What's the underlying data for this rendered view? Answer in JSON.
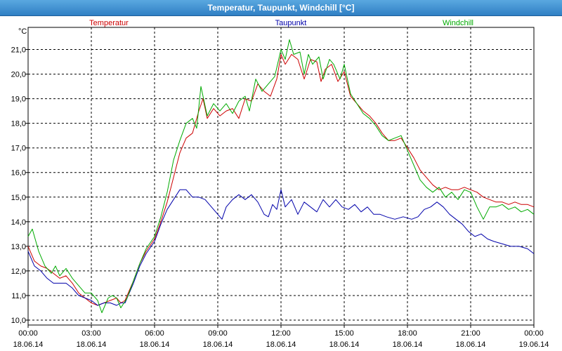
{
  "window": {
    "title": "Temperatur, Taupunkt, Windchill [°C]"
  },
  "chart_data": {
    "type": "line",
    "title": "Temperatur, Taupunkt, Windchill [°C]",
    "ylabel": "°C",
    "ylim": [
      9.8,
      21.9
    ],
    "xlim": [
      0,
      24
    ],
    "grid": true,
    "legend_position": "top",
    "yticks": [
      "10,0",
      "11,0",
      "12,0",
      "13,0",
      "14,0",
      "15,0",
      "16,0",
      "17,0",
      "18,0",
      "19,0",
      "20,0",
      "21,0"
    ],
    "xticks": [
      {
        "time": "00:00",
        "date": "18.06.14"
      },
      {
        "time": "03:00",
        "date": "18.06.14"
      },
      {
        "time": "06:00",
        "date": "18.06.14"
      },
      {
        "time": "09:00",
        "date": "18.06.14"
      },
      {
        "time": "12:00",
        "date": "18.06.14"
      },
      {
        "time": "15:00",
        "date": "18.06.14"
      },
      {
        "time": "18:00",
        "date": "18.06.14"
      },
      {
        "time": "21:00",
        "date": "18.06.14"
      },
      {
        "time": "00:00",
        "date": "19.06.14"
      }
    ],
    "series": [
      {
        "name": "Temperatur",
        "color": "#cc0000",
        "points": [
          [
            0.0,
            13.0
          ],
          [
            0.3,
            12.4
          ],
          [
            0.6,
            12.2
          ],
          [
            0.9,
            12.1
          ],
          [
            1.2,
            11.9
          ],
          [
            1.5,
            11.7
          ],
          [
            1.8,
            11.8
          ],
          [
            2.1,
            11.5
          ],
          [
            2.4,
            11.1
          ],
          [
            2.7,
            10.9
          ],
          [
            3.0,
            10.7
          ],
          [
            3.3,
            10.6
          ],
          [
            3.6,
            10.7
          ],
          [
            3.9,
            10.8
          ],
          [
            4.2,
            10.9
          ],
          [
            4.4,
            10.7
          ],
          [
            4.6,
            10.8
          ],
          [
            5.0,
            11.6
          ],
          [
            5.3,
            12.3
          ],
          [
            5.6,
            12.8
          ],
          [
            6.0,
            13.3
          ],
          [
            6.3,
            14.0
          ],
          [
            6.6,
            14.8
          ],
          [
            6.9,
            15.8
          ],
          [
            7.2,
            16.8
          ],
          [
            7.5,
            17.4
          ],
          [
            7.8,
            17.6
          ],
          [
            8.1,
            18.5
          ],
          [
            8.3,
            19.0
          ],
          [
            8.5,
            18.2
          ],
          [
            8.8,
            18.6
          ],
          [
            9.1,
            18.3
          ],
          [
            9.4,
            18.5
          ],
          [
            9.7,
            18.6
          ],
          [
            10.0,
            18.2
          ],
          [
            10.3,
            19.0
          ],
          [
            10.6,
            18.9
          ],
          [
            10.9,
            19.6
          ],
          [
            11.2,
            19.3
          ],
          [
            11.5,
            19.1
          ],
          [
            11.8,
            19.8
          ],
          [
            12.0,
            20.8
          ],
          [
            12.2,
            20.4
          ],
          [
            12.5,
            20.8
          ],
          [
            12.8,
            20.6
          ],
          [
            13.1,
            19.8
          ],
          [
            13.4,
            20.6
          ],
          [
            13.7,
            20.5
          ],
          [
            13.9,
            19.7
          ],
          [
            14.1,
            20.2
          ],
          [
            14.4,
            20.4
          ],
          [
            14.7,
            19.7
          ],
          [
            15.0,
            20.1
          ],
          [
            15.3,
            19.1
          ],
          [
            15.6,
            18.8
          ],
          [
            15.9,
            18.5
          ],
          [
            16.2,
            18.3
          ],
          [
            16.5,
            18.0
          ],
          [
            16.8,
            17.6
          ],
          [
            17.1,
            17.3
          ],
          [
            17.4,
            17.3
          ],
          [
            17.7,
            17.4
          ],
          [
            18.0,
            17.0
          ],
          [
            18.3,
            16.6
          ],
          [
            18.6,
            16.1
          ],
          [
            18.9,
            15.8
          ],
          [
            19.2,
            15.5
          ],
          [
            19.5,
            15.3
          ],
          [
            19.8,
            15.4
          ],
          [
            20.1,
            15.3
          ],
          [
            20.4,
            15.3
          ],
          [
            20.7,
            15.4
          ],
          [
            21.0,
            15.3
          ],
          [
            21.3,
            15.2
          ],
          [
            21.6,
            15.0
          ],
          [
            21.9,
            14.9
          ],
          [
            22.2,
            14.8
          ],
          [
            22.5,
            14.8
          ],
          [
            22.8,
            14.7
          ],
          [
            23.1,
            14.8
          ],
          [
            23.4,
            14.7
          ],
          [
            23.7,
            14.7
          ],
          [
            24.0,
            14.6
          ]
        ]
      },
      {
        "name": "Taupunkt",
        "color": "#0000aa",
        "points": [
          [
            0.0,
            12.8
          ],
          [
            0.3,
            12.2
          ],
          [
            0.6,
            12.0
          ],
          [
            0.9,
            11.7
          ],
          [
            1.2,
            11.5
          ],
          [
            1.5,
            11.5
          ],
          [
            1.8,
            11.5
          ],
          [
            2.1,
            11.3
          ],
          [
            2.4,
            11.0
          ],
          [
            2.7,
            10.9
          ],
          [
            3.0,
            10.8
          ],
          [
            3.3,
            10.6
          ],
          [
            3.6,
            10.7
          ],
          [
            3.9,
            10.7
          ],
          [
            4.2,
            10.6
          ],
          [
            4.4,
            10.7
          ],
          [
            4.6,
            10.7
          ],
          [
            5.0,
            11.5
          ],
          [
            5.3,
            12.2
          ],
          [
            5.6,
            12.7
          ],
          [
            6.0,
            13.2
          ],
          [
            6.3,
            13.9
          ],
          [
            6.6,
            14.5
          ],
          [
            6.9,
            14.9
          ],
          [
            7.2,
            15.3
          ],
          [
            7.5,
            15.3
          ],
          [
            7.8,
            15.0
          ],
          [
            8.1,
            15.0
          ],
          [
            8.4,
            14.9
          ],
          [
            8.7,
            14.6
          ],
          [
            9.0,
            14.3
          ],
          [
            9.2,
            14.1
          ],
          [
            9.4,
            14.6
          ],
          [
            9.7,
            14.9
          ],
          [
            10.0,
            15.1
          ],
          [
            10.3,
            14.9
          ],
          [
            10.6,
            15.1
          ],
          [
            10.9,
            14.8
          ],
          [
            11.2,
            14.3
          ],
          [
            11.4,
            14.2
          ],
          [
            11.6,
            14.7
          ],
          [
            11.8,
            14.5
          ],
          [
            12.0,
            15.3
          ],
          [
            12.2,
            14.6
          ],
          [
            12.5,
            14.9
          ],
          [
            12.8,
            14.3
          ],
          [
            13.1,
            14.8
          ],
          [
            13.4,
            14.6
          ],
          [
            13.7,
            14.4
          ],
          [
            14.0,
            14.9
          ],
          [
            14.3,
            14.6
          ],
          [
            14.6,
            14.9
          ],
          [
            14.9,
            14.6
          ],
          [
            15.2,
            14.5
          ],
          [
            15.5,
            14.7
          ],
          [
            15.8,
            14.4
          ],
          [
            16.1,
            14.6
          ],
          [
            16.4,
            14.3
          ],
          [
            16.7,
            14.3
          ],
          [
            17.0,
            14.2
          ],
          [
            17.4,
            14.1
          ],
          [
            17.8,
            14.2
          ],
          [
            18.2,
            14.1
          ],
          [
            18.5,
            14.2
          ],
          [
            18.8,
            14.5
          ],
          [
            19.1,
            14.6
          ],
          [
            19.4,
            14.8
          ],
          [
            19.7,
            14.6
          ],
          [
            20.0,
            14.3
          ],
          [
            20.3,
            14.1
          ],
          [
            20.6,
            13.9
          ],
          [
            20.9,
            13.6
          ],
          [
            21.2,
            13.4
          ],
          [
            21.5,
            13.5
          ],
          [
            21.8,
            13.3
          ],
          [
            22.1,
            13.2
          ],
          [
            22.5,
            13.1
          ],
          [
            22.9,
            13.0
          ],
          [
            23.3,
            13.0
          ],
          [
            23.7,
            12.9
          ],
          [
            24.0,
            12.7
          ]
        ]
      },
      {
        "name": "Windchill",
        "color": "#00aa00",
        "points": [
          [
            0.0,
            13.4
          ],
          [
            0.2,
            13.7
          ],
          [
            0.5,
            12.8
          ],
          [
            0.8,
            12.2
          ],
          [
            1.1,
            11.9
          ],
          [
            1.3,
            12.2
          ],
          [
            1.5,
            11.8
          ],
          [
            1.8,
            12.1
          ],
          [
            2.1,
            11.7
          ],
          [
            2.4,
            11.4
          ],
          [
            2.7,
            11.1
          ],
          [
            3.0,
            11.1
          ],
          [
            3.3,
            10.8
          ],
          [
            3.5,
            10.3
          ],
          [
            3.8,
            10.9
          ],
          [
            4.0,
            11.0
          ],
          [
            4.2,
            10.9
          ],
          [
            4.4,
            10.5
          ],
          [
            4.7,
            10.9
          ],
          [
            5.0,
            11.6
          ],
          [
            5.3,
            12.3
          ],
          [
            5.6,
            12.9
          ],
          [
            6.0,
            13.4
          ],
          [
            6.3,
            14.2
          ],
          [
            6.6,
            15.2
          ],
          [
            6.9,
            16.5
          ],
          [
            7.2,
            17.3
          ],
          [
            7.5,
            18.0
          ],
          [
            7.8,
            18.2
          ],
          [
            8.0,
            17.8
          ],
          [
            8.2,
            19.5
          ],
          [
            8.5,
            18.3
          ],
          [
            8.8,
            18.8
          ],
          [
            9.1,
            18.5
          ],
          [
            9.4,
            18.8
          ],
          [
            9.7,
            18.4
          ],
          [
            10.0,
            18.9
          ],
          [
            10.3,
            19.1
          ],
          [
            10.5,
            18.5
          ],
          [
            10.8,
            19.8
          ],
          [
            11.1,
            19.3
          ],
          [
            11.4,
            19.6
          ],
          [
            11.7,
            19.9
          ],
          [
            12.0,
            21.0
          ],
          [
            12.2,
            20.6
          ],
          [
            12.4,
            21.4
          ],
          [
            12.6,
            20.8
          ],
          [
            12.9,
            20.9
          ],
          [
            13.1,
            20.0
          ],
          [
            13.3,
            20.8
          ],
          [
            13.5,
            20.4
          ],
          [
            13.8,
            20.7
          ],
          [
            14.0,
            19.8
          ],
          [
            14.3,
            20.6
          ],
          [
            14.5,
            20.4
          ],
          [
            14.8,
            19.8
          ],
          [
            15.0,
            20.4
          ],
          [
            15.3,
            19.2
          ],
          [
            15.6,
            18.8
          ],
          [
            15.9,
            18.4
          ],
          [
            16.2,
            18.2
          ],
          [
            16.5,
            17.9
          ],
          [
            16.8,
            17.5
          ],
          [
            17.1,
            17.3
          ],
          [
            17.4,
            17.4
          ],
          [
            17.7,
            17.5
          ],
          [
            18.0,
            16.9
          ],
          [
            18.3,
            16.3
          ],
          [
            18.6,
            15.7
          ],
          [
            18.9,
            15.4
          ],
          [
            19.2,
            15.2
          ],
          [
            19.5,
            15.4
          ],
          [
            19.8,
            15.0
          ],
          [
            20.1,
            15.2
          ],
          [
            20.4,
            14.9
          ],
          [
            20.7,
            15.3
          ],
          [
            21.0,
            15.2
          ],
          [
            21.3,
            14.6
          ],
          [
            21.6,
            14.1
          ],
          [
            21.9,
            14.6
          ],
          [
            22.2,
            14.6
          ],
          [
            22.5,
            14.7
          ],
          [
            22.8,
            14.5
          ],
          [
            23.1,
            14.6
          ],
          [
            23.4,
            14.4
          ],
          [
            23.7,
            14.5
          ],
          [
            24.0,
            14.3
          ]
        ]
      }
    ]
  }
}
